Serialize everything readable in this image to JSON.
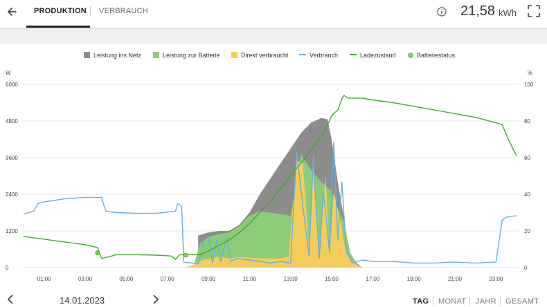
{
  "header": {
    "tabs": [
      {
        "label": "PRODUKTION",
        "active": true
      },
      {
        "label": "VERBRAUCH",
        "active": false
      }
    ],
    "energy_value": "21,58",
    "energy_unit": "kWh"
  },
  "legend": [
    {
      "label": "Leistung ins Netz",
      "kind": "area",
      "color": "#8c8c8c"
    },
    {
      "label": "Leistung zur Batterie",
      "kind": "area",
      "color": "#8ccc78"
    },
    {
      "label": "Direkt verbraucht",
      "kind": "area",
      "color": "#f5cd5a"
    },
    {
      "label": "Verbrauch",
      "kind": "line",
      "color": "#6aaedb"
    },
    {
      "label": "Ladezustand",
      "kind": "line",
      "color": "#43a82f"
    },
    {
      "label": "Batteriestatus",
      "kind": "dot",
      "color": "#7dc96a"
    }
  ],
  "axis_units": {
    "left": "W",
    "right": "%"
  },
  "chart_data": {
    "type": "area",
    "title": "",
    "xlabel": "",
    "x_ticks": [
      "01:00",
      "03:00",
      "05:00",
      "07:00",
      "09:00",
      "11:00",
      "13:00",
      "15:00",
      "17:00",
      "19:00",
      "21:00",
      "23:00"
    ],
    "xlim_hours": [
      0,
      24
    ],
    "ylim_left": [
      0,
      6000
    ],
    "yticks_left": [
      "0",
      "1200",
      "2400",
      "3600",
      "4800",
      "6000"
    ],
    "ylim_right": [
      0,
      100
    ],
    "yticks_right": [
      "0",
      "20",
      "40",
      "60",
      "80",
      "100"
    ],
    "grid": true,
    "legend_position": "top-center",
    "series": [
      {
        "name": "Leistung ins Netz",
        "type": "area",
        "axis": "left",
        "color": "#8c8c8c",
        "points": [
          [
            8.5,
            1050
          ],
          [
            9.0,
            1150
          ],
          [
            9.5,
            1200
          ],
          [
            10.0,
            1200
          ],
          [
            10.5,
            1400
          ],
          [
            11.0,
            1800
          ],
          [
            11.5,
            2400
          ],
          [
            12.0,
            2900
          ],
          [
            12.5,
            3400
          ],
          [
            13.0,
            3900
          ],
          [
            13.5,
            4400
          ],
          [
            14.0,
            4750
          ],
          [
            14.5,
            4900
          ],
          [
            14.8,
            4850
          ],
          [
            15.0,
            4200
          ],
          [
            15.3,
            2800
          ],
          [
            15.6,
            1600
          ],
          [
            15.8,
            600
          ],
          [
            16.2,
            150
          ],
          [
            16.5,
            0
          ]
        ]
      },
      {
        "name": "Leistung zur Batterie",
        "type": "area",
        "axis": "left",
        "color": "#8ccc78",
        "points": [
          [
            7.9,
            0
          ],
          [
            8.3,
            100
          ],
          [
            8.6,
            800
          ],
          [
            9.0,
            1000
          ],
          [
            9.5,
            1100
          ],
          [
            10.0,
            1150
          ],
          [
            10.5,
            1350
          ],
          [
            11.0,
            1700
          ],
          [
            11.5,
            1850
          ],
          [
            12.0,
            1800
          ],
          [
            12.5,
            1750
          ],
          [
            13.0,
            1700
          ],
          [
            13.5,
            3700
          ],
          [
            14.0,
            3200
          ],
          [
            14.5,
            2800
          ],
          [
            15.0,
            2500
          ],
          [
            15.3,
            1900
          ],
          [
            15.6,
            1500
          ],
          [
            15.9,
            500
          ],
          [
            16.2,
            100
          ],
          [
            16.5,
            0
          ]
        ]
      },
      {
        "name": "Direkt verbraucht",
        "type": "area",
        "axis": "left",
        "color": "#f5cd5a",
        "points": [
          [
            7.9,
            0
          ],
          [
            8.3,
            100
          ],
          [
            8.7,
            250
          ],
          [
            9.1,
            300
          ],
          [
            9.5,
            350
          ],
          [
            10.0,
            300
          ],
          [
            10.5,
            350
          ],
          [
            11.0,
            320
          ],
          [
            11.5,
            300
          ],
          [
            12.0,
            300
          ],
          [
            12.5,
            300
          ],
          [
            12.9,
            350
          ],
          [
            13.3,
            3500
          ],
          [
            13.6,
            3400
          ],
          [
            13.9,
            600
          ],
          [
            14.1,
            3700
          ],
          [
            14.4,
            400
          ],
          [
            14.7,
            3000
          ],
          [
            14.9,
            400
          ],
          [
            15.1,
            2500
          ],
          [
            15.4,
            1600
          ],
          [
            15.7,
            450
          ],
          [
            16.0,
            200
          ],
          [
            16.3,
            50
          ],
          [
            16.6,
            0
          ]
        ]
      },
      {
        "name": "Verbrauch",
        "type": "line",
        "axis": "left",
        "color": "#6aaedb",
        "points": [
          [
            0.0,
            1750
          ],
          [
            0.5,
            1850
          ],
          [
            0.7,
            2100
          ],
          [
            1.0,
            2150
          ],
          [
            2.0,
            2250
          ],
          [
            3.0,
            2300
          ],
          [
            3.8,
            2300
          ],
          [
            4.0,
            1850
          ],
          [
            4.5,
            1800
          ],
          [
            5.5,
            1780
          ],
          [
            6.5,
            1780
          ],
          [
            7.4,
            1850
          ],
          [
            7.5,
            2100
          ],
          [
            7.7,
            2000
          ],
          [
            7.8,
            180
          ],
          [
            8.2,
            150
          ],
          [
            8.5,
            120
          ],
          [
            8.8,
            900
          ],
          [
            9.0,
            1000
          ],
          [
            9.2,
            150
          ],
          [
            9.4,
            900
          ],
          [
            9.6,
            200
          ],
          [
            9.9,
            1000
          ],
          [
            10.1,
            200
          ],
          [
            10.4,
            300
          ],
          [
            11.0,
            250
          ],
          [
            12.0,
            150
          ],
          [
            12.5,
            200
          ],
          [
            13.0,
            150
          ],
          [
            13.3,
            3800
          ],
          [
            13.6,
            2000
          ],
          [
            13.9,
            400
          ],
          [
            14.1,
            3500
          ],
          [
            14.4,
            300
          ],
          [
            14.6,
            2500
          ],
          [
            14.9,
            500
          ],
          [
            15.1,
            4100
          ],
          [
            15.3,
            900
          ],
          [
            15.5,
            2800
          ],
          [
            15.7,
            600
          ],
          [
            16.0,
            150
          ],
          [
            16.5,
            250
          ],
          [
            17.0,
            200
          ],
          [
            18.0,
            200
          ],
          [
            19.0,
            150
          ],
          [
            20.0,
            150
          ],
          [
            21.0,
            180
          ],
          [
            22.0,
            150
          ],
          [
            23.0,
            180
          ],
          [
            23.3,
            1550
          ],
          [
            23.5,
            1650
          ],
          [
            24.0,
            1700
          ]
        ]
      },
      {
        "name": "Ladezustand",
        "type": "line",
        "axis": "right",
        "color": "#43a82f",
        "points": [
          [
            0.0,
            17
          ],
          [
            1.0,
            15.5
          ],
          [
            2.0,
            14
          ],
          [
            3.0,
            12.5
          ],
          [
            3.6,
            11
          ],
          [
            3.8,
            5
          ],
          [
            4.2,
            6
          ],
          [
            4.5,
            7
          ],
          [
            5.5,
            7
          ],
          [
            6.5,
            6.8
          ],
          [
            7.2,
            6.3
          ],
          [
            7.4,
            4.5
          ],
          [
            7.6,
            7
          ],
          [
            8.0,
            7
          ],
          [
            8.6,
            7
          ],
          [
            9.0,
            9
          ],
          [
            9.5,
            12
          ],
          [
            10.0,
            15
          ],
          [
            10.5,
            19
          ],
          [
            11.0,
            24
          ],
          [
            11.5,
            30
          ],
          [
            12.0,
            36
          ],
          [
            12.5,
            43
          ],
          [
            13.0,
            50
          ],
          [
            13.5,
            57
          ],
          [
            14.0,
            64
          ],
          [
            14.5,
            72
          ],
          [
            14.8,
            78
          ],
          [
            15.0,
            83
          ],
          [
            15.3,
            86
          ],
          [
            15.5,
            92
          ],
          [
            15.6,
            94
          ],
          [
            15.8,
            92.5
          ],
          [
            16.5,
            92.5
          ],
          [
            17.0,
            91.5
          ],
          [
            18.0,
            90
          ],
          [
            19.0,
            88
          ],
          [
            20.0,
            86
          ],
          [
            21.0,
            84
          ],
          [
            22.0,
            82
          ],
          [
            23.0,
            79
          ],
          [
            23.3,
            78
          ],
          [
            23.6,
            70
          ],
          [
            24.0,
            61
          ]
        ]
      },
      {
        "name": "Batteriestatus",
        "type": "points",
        "axis": "right",
        "color": "#7dc96a",
        "points": [
          [
            3.6,
            8
          ],
          [
            7.9,
            6.8
          ]
        ]
      }
    ]
  },
  "footer": {
    "date": "14.01.2023",
    "ranges": [
      "TAG",
      "MONAT",
      "JAHR",
      "GESAMT"
    ],
    "active_range": "TAG"
  }
}
